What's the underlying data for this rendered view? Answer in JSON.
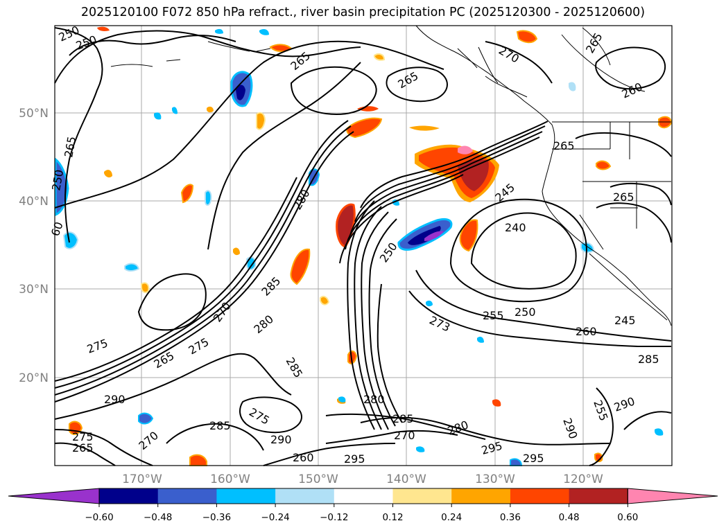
{
  "title": "2025120100 F072 850 hPa refract., river basin precipitation PC (2025120300 - 2025120600)",
  "map": {
    "lat_labels": [
      "50°N",
      "40°N",
      "30°N",
      "20°N"
    ],
    "lon_labels": [
      "170°W",
      "160°W",
      "150°W",
      "140°W",
      "130°W",
      "120°W"
    ],
    "contour_labels": [
      "250",
      "250",
      "265",
      "265",
      "270",
      "265",
      "260",
      "265",
      "265",
      "250",
      "60",
      "280",
      "250",
      "245",
      "240",
      "265",
      "285",
      "255",
      "250",
      "273",
      "260",
      "245",
      "270",
      "275",
      "265",
      "275",
      "280",
      "285",
      "290",
      "285",
      "290",
      "275",
      "280",
      "285",
      "270",
      "280",
      "295",
      "295",
      "295",
      "290",
      "290",
      "285",
      "260",
      "270",
      "265",
      "275",
      "255"
    ]
  },
  "colorbar": {
    "ticks": [
      "−0.60",
      "−0.48",
      "−0.36",
      "−0.24",
      "−0.12",
      "0.12",
      "0.24",
      "0.36",
      "0.48",
      "0.60"
    ],
    "colors": [
      "#9932cc",
      "#00008b",
      "#3a5fcd",
      "#00bfff",
      "#b0e0f6",
      "#ffffff",
      "#ffe68f",
      "#ffa500",
      "#ff4500",
      "#b22222",
      "#ff85b0"
    ]
  },
  "anomaly_colors": {
    "pos_weak": "#ffe68f",
    "pos_mid": "#ffa500",
    "pos_strong": "#ff4500",
    "pos_dark": "#b22222",
    "pos_max": "#ff85b0",
    "neg_weak": "#b0e0f6",
    "neg_mid": "#00bfff",
    "neg_strong": "#3a5fcd",
    "neg_dark": "#00008b",
    "neg_max": "#9932cc"
  }
}
